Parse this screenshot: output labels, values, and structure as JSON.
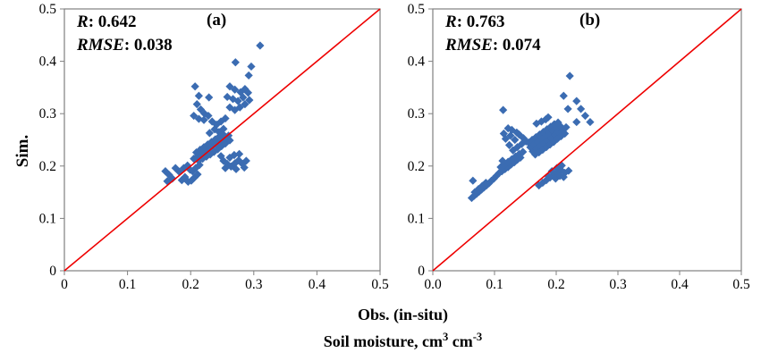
{
  "figure": {
    "y_axis_title": "Sim.",
    "caption_line1": "Obs. (in-situ)",
    "caption_line2_parts": [
      "Soil moisture, cm",
      "3",
      " cm",
      "-3"
    ]
  },
  "colors": {
    "marker": "#3B6CB2",
    "identity_line": "#EE0000",
    "axis": "#808080",
    "text": "#000000"
  },
  "chart_data": [
    {
      "type": "scatter",
      "panel_label": "(a)",
      "stats": {
        "r_name": "R",
        "r_rest": ": 0.642",
        "rmse_name": "RMSE",
        "rmse_rest": ": 0.038"
      },
      "xlabel": "Obs. (in-situ)",
      "ylabel": "Sim.",
      "units": "Soil moisture, cm3 cm-3",
      "xlim": [
        0,
        0.5
      ],
      "ylim": [
        0,
        0.5
      ],
      "grid": false,
      "marker": "diamond",
      "x_tick_labels": [
        "0",
        "0.1",
        "0.2",
        "0.3",
        "0.4",
        "0.5"
      ],
      "y_tick_labels": [
        "0",
        "0.1",
        "0.2",
        "0.3",
        "0.4",
        "0.5"
      ],
      "identity_line": {
        "x": [
          0,
          0.5
        ],
        "y": [
          0,
          0.5
        ]
      },
      "points": [
        [
          0.31,
          0.43
        ],
        [
          0.271,
          0.398
        ],
        [
          0.296,
          0.39
        ],
        [
          0.292,
          0.373
        ],
        [
          0.207,
          0.352
        ],
        [
          0.213,
          0.334
        ],
        [
          0.229,
          0.331
        ],
        [
          0.21,
          0.318
        ],
        [
          0.216,
          0.308
        ],
        [
          0.222,
          0.3
        ],
        [
          0.205,
          0.296
        ],
        [
          0.213,
          0.29
        ],
        [
          0.221,
          0.288
        ],
        [
          0.228,
          0.296
        ],
        [
          0.262,
          0.352
        ],
        [
          0.27,
          0.346
        ],
        [
          0.279,
          0.341
        ],
        [
          0.286,
          0.347
        ],
        [
          0.258,
          0.332
        ],
        [
          0.267,
          0.328
        ],
        [
          0.275,
          0.324
        ],
        [
          0.283,
          0.331
        ],
        [
          0.291,
          0.34
        ],
        [
          0.262,
          0.312
        ],
        [
          0.27,
          0.307
        ],
        [
          0.278,
          0.312
        ],
        [
          0.286,
          0.318
        ],
        [
          0.293,
          0.326
        ],
        [
          0.234,
          0.285
        ],
        [
          0.241,
          0.279
        ],
        [
          0.248,
          0.285
        ],
        [
          0.255,
          0.291
        ],
        [
          0.238,
          0.27
        ],
        [
          0.245,
          0.265
        ],
        [
          0.252,
          0.271
        ],
        [
          0.23,
          0.263
        ],
        [
          0.205,
          0.214
        ],
        [
          0.21,
          0.218
        ],
        [
          0.215,
          0.222
        ],
        [
          0.22,
          0.226
        ],
        [
          0.225,
          0.23
        ],
        [
          0.23,
          0.234
        ],
        [
          0.235,
          0.238
        ],
        [
          0.24,
          0.242
        ],
        [
          0.245,
          0.246
        ],
        [
          0.25,
          0.25
        ],
        [
          0.255,
          0.254
        ],
        [
          0.26,
          0.258
        ],
        [
          0.209,
          0.226
        ],
        [
          0.215,
          0.231
        ],
        [
          0.221,
          0.236
        ],
        [
          0.227,
          0.241
        ],
        [
          0.233,
          0.246
        ],
        [
          0.239,
          0.251
        ],
        [
          0.245,
          0.256
        ],
        [
          0.251,
          0.261
        ],
        [
          0.257,
          0.252
        ],
        [
          0.213,
          0.21
        ],
        [
          0.219,
          0.214
        ],
        [
          0.225,
          0.218
        ],
        [
          0.231,
          0.222
        ],
        [
          0.237,
          0.227
        ],
        [
          0.243,
          0.232
        ],
        [
          0.249,
          0.238
        ],
        [
          0.255,
          0.243
        ],
        [
          0.262,
          0.249
        ],
        [
          0.16,
          0.19
        ],
        [
          0.166,
          0.183
        ],
        [
          0.171,
          0.176
        ],
        [
          0.163,
          0.171
        ],
        [
          0.176,
          0.196
        ],
        [
          0.182,
          0.189
        ],
        [
          0.186,
          0.173
        ],
        [
          0.191,
          0.179
        ],
        [
          0.189,
          0.196
        ],
        [
          0.195,
          0.201
        ],
        [
          0.199,
          0.193
        ],
        [
          0.196,
          0.17
        ],
        [
          0.201,
          0.172
        ],
        [
          0.206,
          0.178
        ],
        [
          0.211,
          0.184
        ],
        [
          0.203,
          0.19
        ],
        [
          0.208,
          0.196
        ],
        [
          0.214,
          0.202
        ],
        [
          0.252,
          0.21
        ],
        [
          0.258,
          0.204
        ],
        [
          0.264,
          0.199
        ],
        [
          0.27,
          0.205
        ],
        [
          0.276,
          0.211
        ],
        [
          0.282,
          0.204
        ],
        [
          0.262,
          0.216
        ],
        [
          0.269,
          0.221
        ],
        [
          0.277,
          0.223
        ],
        [
          0.255,
          0.196
        ],
        [
          0.285,
          0.197
        ],
        [
          0.248,
          0.219
        ],
        [
          0.272,
          0.194
        ],
        [
          0.288,
          0.21
        ]
      ]
    },
    {
      "type": "scatter",
      "panel_label": "(b)",
      "stats": {
        "r_name": "R",
        "r_rest": ": 0.763",
        "rmse_name": "RMSE",
        "rmse_rest": ": 0.074"
      },
      "xlabel": "Obs. (in-situ)",
      "ylabel": "Sim.",
      "units": "Soil moisture, cm3 cm-3",
      "xlim": [
        0,
        0.5
      ],
      "ylim": [
        0,
        0.5
      ],
      "grid": false,
      "marker": "diamond",
      "x_tick_labels": [
        "0.0",
        "0.1",
        "0.2",
        "0.3",
        "0.4",
        "0.5"
      ],
      "y_tick_labels": [
        "0",
        "0.1",
        "0.2",
        "0.3",
        "0.4",
        "0.5"
      ],
      "identity_line": {
        "x": [
          0,
          0.5
        ],
        "y": [
          0,
          0.5
        ]
      },
      "points": [
        [
          0.222,
          0.372
        ],
        [
          0.212,
          0.334
        ],
        [
          0.233,
          0.324
        ],
        [
          0.219,
          0.309
        ],
        [
          0.24,
          0.309
        ],
        [
          0.233,
          0.284
        ],
        [
          0.255,
          0.284
        ],
        [
          0.114,
          0.307
        ],
        [
          0.187,
          0.293
        ],
        [
          0.247,
          0.296
        ],
        [
          0.063,
          0.139
        ],
        [
          0.067,
          0.143
        ],
        [
          0.071,
          0.147
        ],
        [
          0.075,
          0.151
        ],
        [
          0.079,
          0.155
        ],
        [
          0.083,
          0.159
        ],
        [
          0.087,
          0.163
        ],
        [
          0.091,
          0.167
        ],
        [
          0.095,
          0.172
        ],
        [
          0.099,
          0.176
        ],
        [
          0.103,
          0.181
        ],
        [
          0.068,
          0.15
        ],
        [
          0.074,
          0.156
        ],
        [
          0.08,
          0.162
        ],
        [
          0.086,
          0.168
        ],
        [
          0.065,
          0.172
        ],
        [
          0.107,
          0.186
        ],
        [
          0.112,
          0.19
        ],
        [
          0.117,
          0.194
        ],
        [
          0.122,
          0.198
        ],
        [
          0.127,
          0.203
        ],
        [
          0.132,
          0.207
        ],
        [
          0.137,
          0.212
        ],
        [
          0.142,
          0.216
        ],
        [
          0.11,
          0.198
        ],
        [
          0.116,
          0.203
        ],
        [
          0.122,
          0.208
        ],
        [
          0.128,
          0.213
        ],
        [
          0.134,
          0.218
        ],
        [
          0.14,
          0.223
        ],
        [
          0.146,
          0.227
        ],
        [
          0.113,
          0.21
        ],
        [
          0.118,
          0.252
        ],
        [
          0.126,
          0.258
        ],
        [
          0.133,
          0.25
        ],
        [
          0.14,
          0.26
        ],
        [
          0.147,
          0.253
        ],
        [
          0.128,
          0.269
        ],
        [
          0.136,
          0.264
        ],
        [
          0.115,
          0.262
        ],
        [
          0.122,
          0.272
        ],
        [
          0.13,
          0.23
        ],
        [
          0.137,
          0.236
        ],
        [
          0.144,
          0.242
        ],
        [
          0.151,
          0.247
        ],
        [
          0.124,
          0.24
        ],
        [
          0.155,
          0.245
        ],
        [
          0.161,
          0.25
        ],
        [
          0.167,
          0.255
        ],
        [
          0.173,
          0.26
        ],
        [
          0.179,
          0.265
        ],
        [
          0.185,
          0.27
        ],
        [
          0.191,
          0.275
        ],
        [
          0.197,
          0.28
        ],
        [
          0.158,
          0.236
        ],
        [
          0.164,
          0.241
        ],
        [
          0.17,
          0.246
        ],
        [
          0.176,
          0.251
        ],
        [
          0.182,
          0.256
        ],
        [
          0.188,
          0.262
        ],
        [
          0.194,
          0.267
        ],
        [
          0.2,
          0.272
        ],
        [
          0.206,
          0.277
        ],
        [
          0.162,
          0.228
        ],
        [
          0.168,
          0.233
        ],
        [
          0.174,
          0.238
        ],
        [
          0.18,
          0.243
        ],
        [
          0.186,
          0.248
        ],
        [
          0.192,
          0.253
        ],
        [
          0.198,
          0.259
        ],
        [
          0.204,
          0.264
        ],
        [
          0.21,
          0.269
        ],
        [
          0.216,
          0.274
        ],
        [
          0.166,
          0.222
        ],
        [
          0.172,
          0.226
        ],
        [
          0.178,
          0.231
        ],
        [
          0.184,
          0.236
        ],
        [
          0.19,
          0.241
        ],
        [
          0.196,
          0.246
        ],
        [
          0.202,
          0.252
        ],
        [
          0.208,
          0.257
        ],
        [
          0.214,
          0.262
        ],
        [
          0.176,
          0.285
        ],
        [
          0.168,
          0.281
        ],
        [
          0.183,
          0.289
        ],
        [
          0.203,
          0.283
        ],
        [
          0.172,
          0.163
        ],
        [
          0.178,
          0.168
        ],
        [
          0.184,
          0.173
        ],
        [
          0.19,
          0.178
        ],
        [
          0.196,
          0.183
        ],
        [
          0.202,
          0.188
        ],
        [
          0.208,
          0.192
        ],
        [
          0.214,
          0.187
        ],
        [
          0.22,
          0.191
        ],
        [
          0.199,
          0.176
        ],
        [
          0.206,
          0.181
        ],
        [
          0.212,
          0.179
        ],
        [
          0.187,
          0.181
        ],
        [
          0.193,
          0.19
        ],
        [
          0.201,
          0.196
        ],
        [
          0.209,
          0.201
        ]
      ]
    }
  ]
}
